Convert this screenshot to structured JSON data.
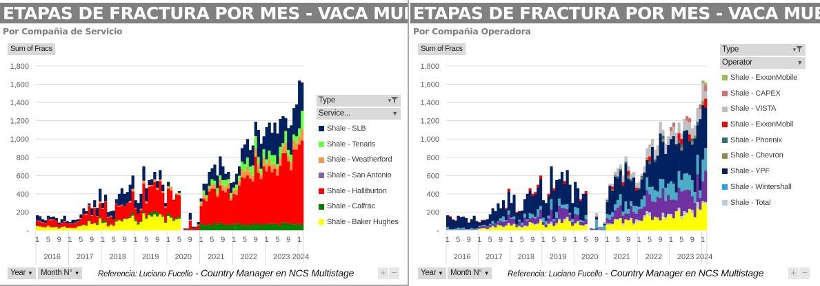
{
  "left_panel": {
    "title": "ETAPAS DE FRACTURA POR MES -  VACA MUERTA",
    "subtitle": "Por Compañia de Servicio",
    "value_button": "Sum of Fracs",
    "legend": {
      "field_header": "Type",
      "sub_header": "Service...",
      "items": [
        {
          "label": "Shale - SLB",
          "color": "#002060"
        },
        {
          "label": "Shale - Tenaris",
          "color": "#66ff44"
        },
        {
          "label": "Shale - Weatherford",
          "color": "#f79646"
        },
        {
          "label": "Shale - San Antonio",
          "color": "#8064a2"
        },
        {
          "label": "Shale - Halliburton",
          "color": "#ff0000"
        },
        {
          "label": "Shale - Calfrac",
          "color": "#008000"
        },
        {
          "label": "Shale - Baker Hughes",
          "color": "#ffff00"
        }
      ]
    },
    "footer": {
      "year_button": "Year",
      "month_button": "Month N°",
      "ref_prefix": "Referencia:  Luciano Fucello",
      "ref_suffix": " - Country Manager en NCS Multistage",
      "plus": "+",
      "minus": "−"
    }
  },
  "right_panel": {
    "title": "ETAPAS DE FRACTURA POR MES -  VACA MUERTA",
    "subtitle": "Por Compañia Operadora",
    "value_button": "Sum of Fracs",
    "legend": {
      "field_header": "Type",
      "sub_header": "Operator",
      "items": [
        {
          "label": "Shale - ExxonMobile",
          "color": "#9bbb59"
        },
        {
          "label": "Shale - CAPEX",
          "color": "#d07070"
        },
        {
          "label": "Shale - VISTA",
          "color": "#bfbfbf"
        },
        {
          "label": "Shale - ExxonMobil",
          "color": "#ff0000"
        },
        {
          "label": "Shale - Phoenix",
          "color": "#31707a"
        },
        {
          "label": "Shale - Chevron",
          "color": "#948a54"
        },
        {
          "label": "Shale - YPF",
          "color": "#002060"
        },
        {
          "label": "Shale - Wintershall",
          "color": "#1fa8e0"
        },
        {
          "label": "Shale - Total",
          "color": "#b8cce4"
        }
      ]
    },
    "footer": {
      "year_button": "Year",
      "month_button": "Month N°",
      "ref_prefix": "Referencia:  Luciano Fucello",
      "ref_suffix": " - Country Manager en NCS Multistage",
      "plus": "+",
      "minus": "−"
    }
  },
  "chart_data": [
    {
      "type": "bar",
      "stacked": true,
      "title": "ETAPAS DE FRACTURA POR MES -  VACA MUERTA",
      "subtitle": "Por Compañia de Servicio",
      "ylabel": "Sum of Fracs",
      "ylim": [
        0,
        1800
      ],
      "yticks": [
        "-",
        "200",
        "400",
        "600",
        "800",
        "1,000",
        "1,200",
        "1,400",
        "1,600",
        "1,800"
      ],
      "month_ticks": [
        "1",
        "5",
        "9"
      ],
      "years": [
        "2016",
        "2017",
        "2018",
        "2019",
        "2020",
        "2021",
        "2022",
        "2023",
        "2024"
      ],
      "months_per_year": [
        12,
        12,
        12,
        12,
        12,
        12,
        12,
        12,
        2
      ],
      "grid": true,
      "legend_position": "right",
      "totals_approx": [
        165,
        155,
        120,
        110,
        160,
        145,
        150,
        135,
        85,
        120,
        160,
        100,
        90,
        115,
        115,
        120,
        175,
        240,
        210,
        295,
        240,
        330,
        245,
        455,
        300,
        390,
        200,
        210,
        215,
        340,
        400,
        460,
        400,
        420,
        500,
        600,
        330,
        300,
        400,
        700,
        460,
        550,
        560,
        640,
        540,
        660,
        500,
        300,
        530,
        460,
        340,
        400,
        430,
        0,
        20,
        20,
        190,
        40,
        40,
        90,
        350,
        510,
        510,
        640,
        680,
        720,
        600,
        810,
        700,
        620,
        640,
        520,
        530,
        620,
        700,
        900,
        940,
        1000,
        880,
        930,
        1190,
        1100,
        950,
        1030,
        1130,
        1180,
        1070,
        1180,
        1060,
        1220,
        1250,
        1230,
        1120,
        1150,
        1340,
        1380,
        1640,
        1620
      ],
      "series": [
        {
          "name": "Shale - Baker Hughes",
          "values_note": "yellow base, ~0-200 through 2016-2019, near 0 after 2020"
        },
        {
          "name": "Shale - Calfrac",
          "values_note": "green, ~50-100 from 2021 onward"
        },
        {
          "name": "Shale - Halliburton",
          "values_note": "red, largest share, ~700-800 by 2023"
        },
        {
          "name": "Shale - San Antonio",
          "values_note": "purple, minimal"
        },
        {
          "name": "Shale - Weatherford",
          "values_note": "orange, ~30-130"
        },
        {
          "name": "Shale - Tenaris",
          "values_note": "light green, ~50-200 from 2021"
        },
        {
          "name": "Shale - SLB",
          "values_note": "navy top, ~100-500"
        }
      ]
    },
    {
      "type": "bar",
      "stacked": true,
      "title": "ETAPAS DE FRACTURA POR MES -  VACA MUERTA",
      "subtitle": "Por Compañia Operadora",
      "ylabel": "Sum of Fracs",
      "ylim": [
        0,
        1800
      ],
      "yticks": [
        "-",
        "200",
        "400",
        "600",
        "800",
        "1,000",
        "1,200",
        "1,400",
        "1,600",
        "1,800"
      ],
      "month_ticks": [
        "1",
        "5",
        "9"
      ],
      "years": [
        "2016",
        "2017",
        "2018",
        "2019",
        "2020",
        "2021",
        "2022",
        "2023",
        "2024"
      ],
      "months_per_year": [
        12,
        12,
        12,
        12,
        12,
        12,
        12,
        12,
        2
      ],
      "grid": true,
      "legend_position": "right",
      "series": [
        {
          "name": "Shale - Total"
        },
        {
          "name": "Shale - Wintershall"
        },
        {
          "name": "Shale - YPF"
        },
        {
          "name": "Shale - Chevron"
        },
        {
          "name": "Shale - Phoenix"
        },
        {
          "name": "Shale - ExxonMobil"
        },
        {
          "name": "Shale - VISTA"
        },
        {
          "name": "Shale - CAPEX"
        },
        {
          "name": "Shale - ExxonMobile"
        }
      ]
    }
  ]
}
